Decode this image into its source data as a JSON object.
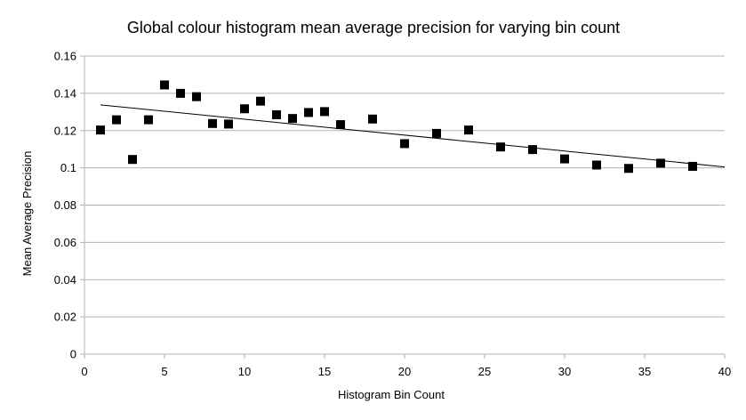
{
  "chart_data": {
    "type": "scatter",
    "title": "Global colour histogram mean average precision for varying bin count",
    "xlabel": "Histogram Bin Count",
    "ylabel": "Mean Average Precision",
    "xlim": [
      0,
      40
    ],
    "ylim": [
      0,
      0.16
    ],
    "xticks": [
      "0",
      "5",
      "10",
      "15",
      "20",
      "25",
      "30",
      "35",
      "40"
    ],
    "yticks": [
      "0",
      "0.02",
      "0.04",
      "0.06",
      "0.08",
      "0.1",
      "0.12",
      "0.14",
      "0.16"
    ],
    "grid": true,
    "legend": "none",
    "series": [
      {
        "marker": "square",
        "color": "#000000",
        "x": [
          1,
          2,
          3,
          4,
          5,
          6,
          7,
          8,
          9,
          10,
          11,
          12,
          13,
          14,
          15,
          16,
          18,
          20,
          22,
          24,
          26,
          28,
          30,
          32,
          34,
          36,
          38
        ],
        "y": [
          0.1203,
          0.1258,
          0.1045,
          0.1258,
          0.1445,
          0.14,
          0.1382,
          0.1238,
          0.1235,
          0.1317,
          0.1358,
          0.1285,
          0.1265,
          0.1297,
          0.1302,
          0.1232,
          0.1262,
          0.113,
          0.1185,
          0.1203,
          0.1112,
          0.1098,
          0.1048,
          0.1015,
          0.0997,
          0.1025,
          0.1008
        ]
      }
    ],
    "trendline": {
      "type": "linear",
      "x": [
        1,
        40
      ],
      "y": [
        0.1338,
        0.1005
      ],
      "color": "#000000"
    }
  }
}
